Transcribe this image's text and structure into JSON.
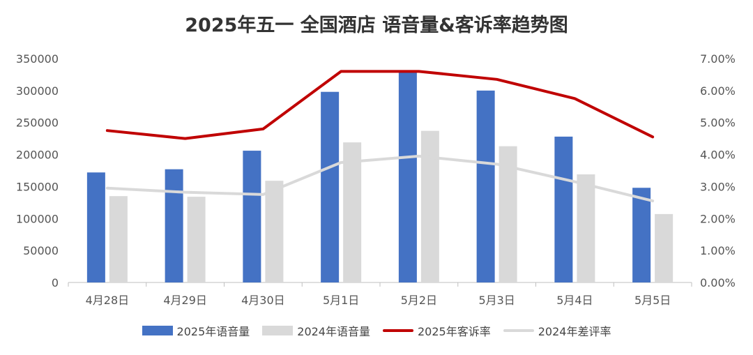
{
  "chart_data": {
    "type": "bar",
    "title": "2025年五一 全国酒店 语音量&客诉率趋势图",
    "categories": [
      "4月28日",
      "4月29日",
      "4月30日",
      "5月1日",
      "5月2日",
      "5月3日",
      "5月4日",
      "5月5日"
    ],
    "y_left": {
      "ylim": [
        0,
        350000
      ],
      "ticks": [
        "0",
        "50000",
        "100000",
        "150000",
        "200000",
        "250000",
        "300000",
        "350000"
      ]
    },
    "y_right": {
      "ylim": [
        0,
        0.07
      ],
      "ticks": [
        "0.00%",
        "1.00%",
        "2.00%",
        "3.00%",
        "4.00%",
        "5.00%",
        "6.00%",
        "7.00%"
      ]
    },
    "series": [
      {
        "name": "2025年语音量",
        "type": "bar",
        "axis": "left",
        "color": "#4472C4",
        "values": [
          172000,
          177000,
          206000,
          298000,
          330000,
          300000,
          228000,
          148000
        ]
      },
      {
        "name": "2024年语音量",
        "type": "bar",
        "axis": "left",
        "color": "#D9D9D9",
        "values": [
          135000,
          134000,
          159000,
          219000,
          237000,
          213000,
          169000,
          107000
        ]
      },
      {
        "name": "2025年客诉率",
        "type": "line",
        "axis": "right",
        "color": "#C00000",
        "values": [
          0.0475,
          0.045,
          0.048,
          0.066,
          0.066,
          0.0635,
          0.0575,
          0.0455
        ]
      },
      {
        "name": "2024年差评率",
        "type": "line",
        "axis": "right",
        "color": "#D9D9D9",
        "values": [
          0.0295,
          0.0282,
          0.0275,
          0.0375,
          0.0395,
          0.037,
          0.0315,
          0.0255
        ]
      }
    ],
    "grid": false,
    "legend_position": "bottom"
  },
  "legend": {
    "items": [
      {
        "label": "2025年语音量",
        "kind": "bar",
        "color": "#4472C4"
      },
      {
        "label": "2024年语音量",
        "kind": "bar",
        "color": "#D9D9D9"
      },
      {
        "label": "2025年客诉率",
        "kind": "line",
        "color": "#C00000"
      },
      {
        "label": "2024年差评率",
        "kind": "line",
        "color": "#D9D9D9"
      }
    ]
  }
}
